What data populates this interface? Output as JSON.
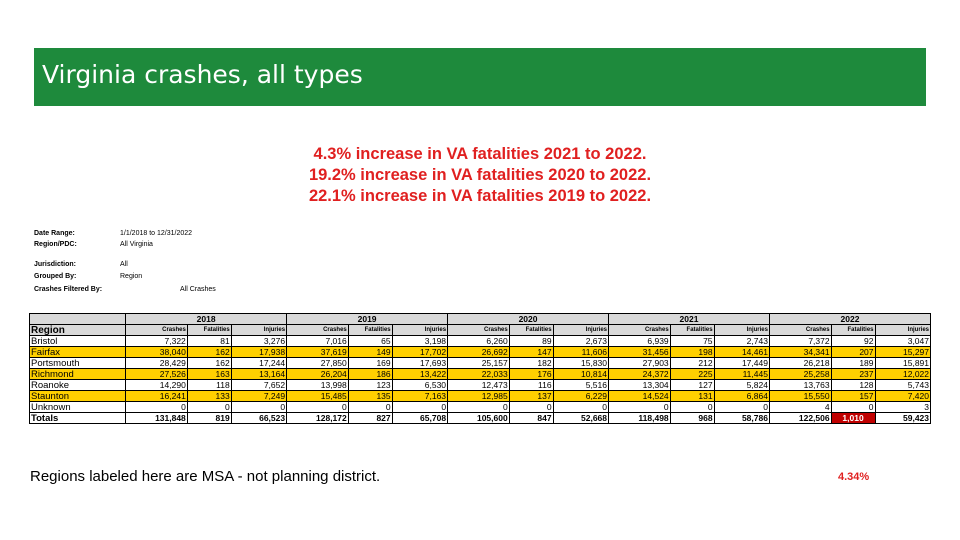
{
  "banner": {
    "title": "Virginia crashes, all types"
  },
  "headline": [
    "4.3% increase in VA fatalities 2021 to 2022.",
    "19.2% increase in VA fatalities 2020 to 2022.",
    "22.1% increase in VA fatalities 2019 to 2022."
  ],
  "meta": {
    "date_range_label": "Date Range:",
    "date_range_value": "1/1/2018  to 12/31/2022",
    "region_label": "Region/PDC:",
    "region_value": "All Virginia",
    "jurisdiction_label": "Jurisdiction:",
    "jurisdiction_value": "All",
    "grouped_label": "Grouped By:",
    "grouped_value": "Region",
    "filtered_label": "Crashes Filtered By:",
    "filtered_value": "All Crashes"
  },
  "table": {
    "region_header": "Region",
    "years": [
      "2018",
      "2019",
      "2020",
      "2021",
      "2022"
    ],
    "subheaders": [
      "Crashes",
      "Fatalities",
      "Injuries"
    ],
    "rows": [
      {
        "region": "Bristol",
        "highlight": false,
        "v": [
          "7,322",
          "81",
          "3,276",
          "7,016",
          "65",
          "3,198",
          "6,260",
          "89",
          "2,673",
          "6,939",
          "75",
          "2,743",
          "7,372",
          "92",
          "3,047"
        ]
      },
      {
        "region": "Fairfax",
        "highlight": true,
        "v": [
          "38,040",
          "162",
          "17,938",
          "37,619",
          "149",
          "17,702",
          "26,692",
          "147",
          "11,606",
          "31,456",
          "198",
          "14,461",
          "34,341",
          "207",
          "15,297"
        ]
      },
      {
        "region": "Portsmouth",
        "highlight": false,
        "v": [
          "28,429",
          "162",
          "17,244",
          "27,850",
          "169",
          "17,693",
          "25,157",
          "182",
          "15,830",
          "27,903",
          "212",
          "17,449",
          "26,218",
          "189",
          "15,891"
        ]
      },
      {
        "region": "Richmond",
        "highlight": true,
        "v": [
          "27,526",
          "163",
          "13,164",
          "26,204",
          "186",
          "13,422",
          "22,033",
          "176",
          "10,814",
          "24,372",
          "225",
          "11,445",
          "25,258",
          "237",
          "12,022"
        ]
      },
      {
        "region": "Roanoke",
        "highlight": false,
        "v": [
          "14,290",
          "118",
          "7,652",
          "13,998",
          "123",
          "6,530",
          "12,473",
          "116",
          "5,516",
          "13,304",
          "127",
          "5,824",
          "13,763",
          "128",
          "5,743"
        ]
      },
      {
        "region": "Staunton",
        "highlight": true,
        "v": [
          "16,241",
          "133",
          "7,249",
          "15,485",
          "135",
          "7,163",
          "12,985",
          "137",
          "6,229",
          "14,524",
          "131",
          "6,864",
          "15,550",
          "157",
          "7,420"
        ]
      },
      {
        "region": "Unknown",
        "highlight": false,
        "v": [
          "0",
          "0",
          "0",
          "0",
          "0",
          "0",
          "0",
          "0",
          "0",
          "0",
          "0",
          "0",
          "4",
          "0",
          "3"
        ]
      }
    ],
    "totals": {
      "label": "Totals",
      "v": [
        "131,848",
        "819",
        "66,523",
        "128,172",
        "827",
        "65,708",
        "105,600",
        "847",
        "52,668",
        "118,498",
        "968",
        "58,786",
        "122,506",
        "1,010",
        "59,423"
      ]
    }
  },
  "footnote": "Regions labeled here are MSA - not planning district.",
  "pct_change": "4.34%",
  "colors": {
    "banner": "#1e8a3c",
    "headline": "#e02020",
    "highlight_row": "#ffd000",
    "fatality_cell": "#c00000"
  }
}
